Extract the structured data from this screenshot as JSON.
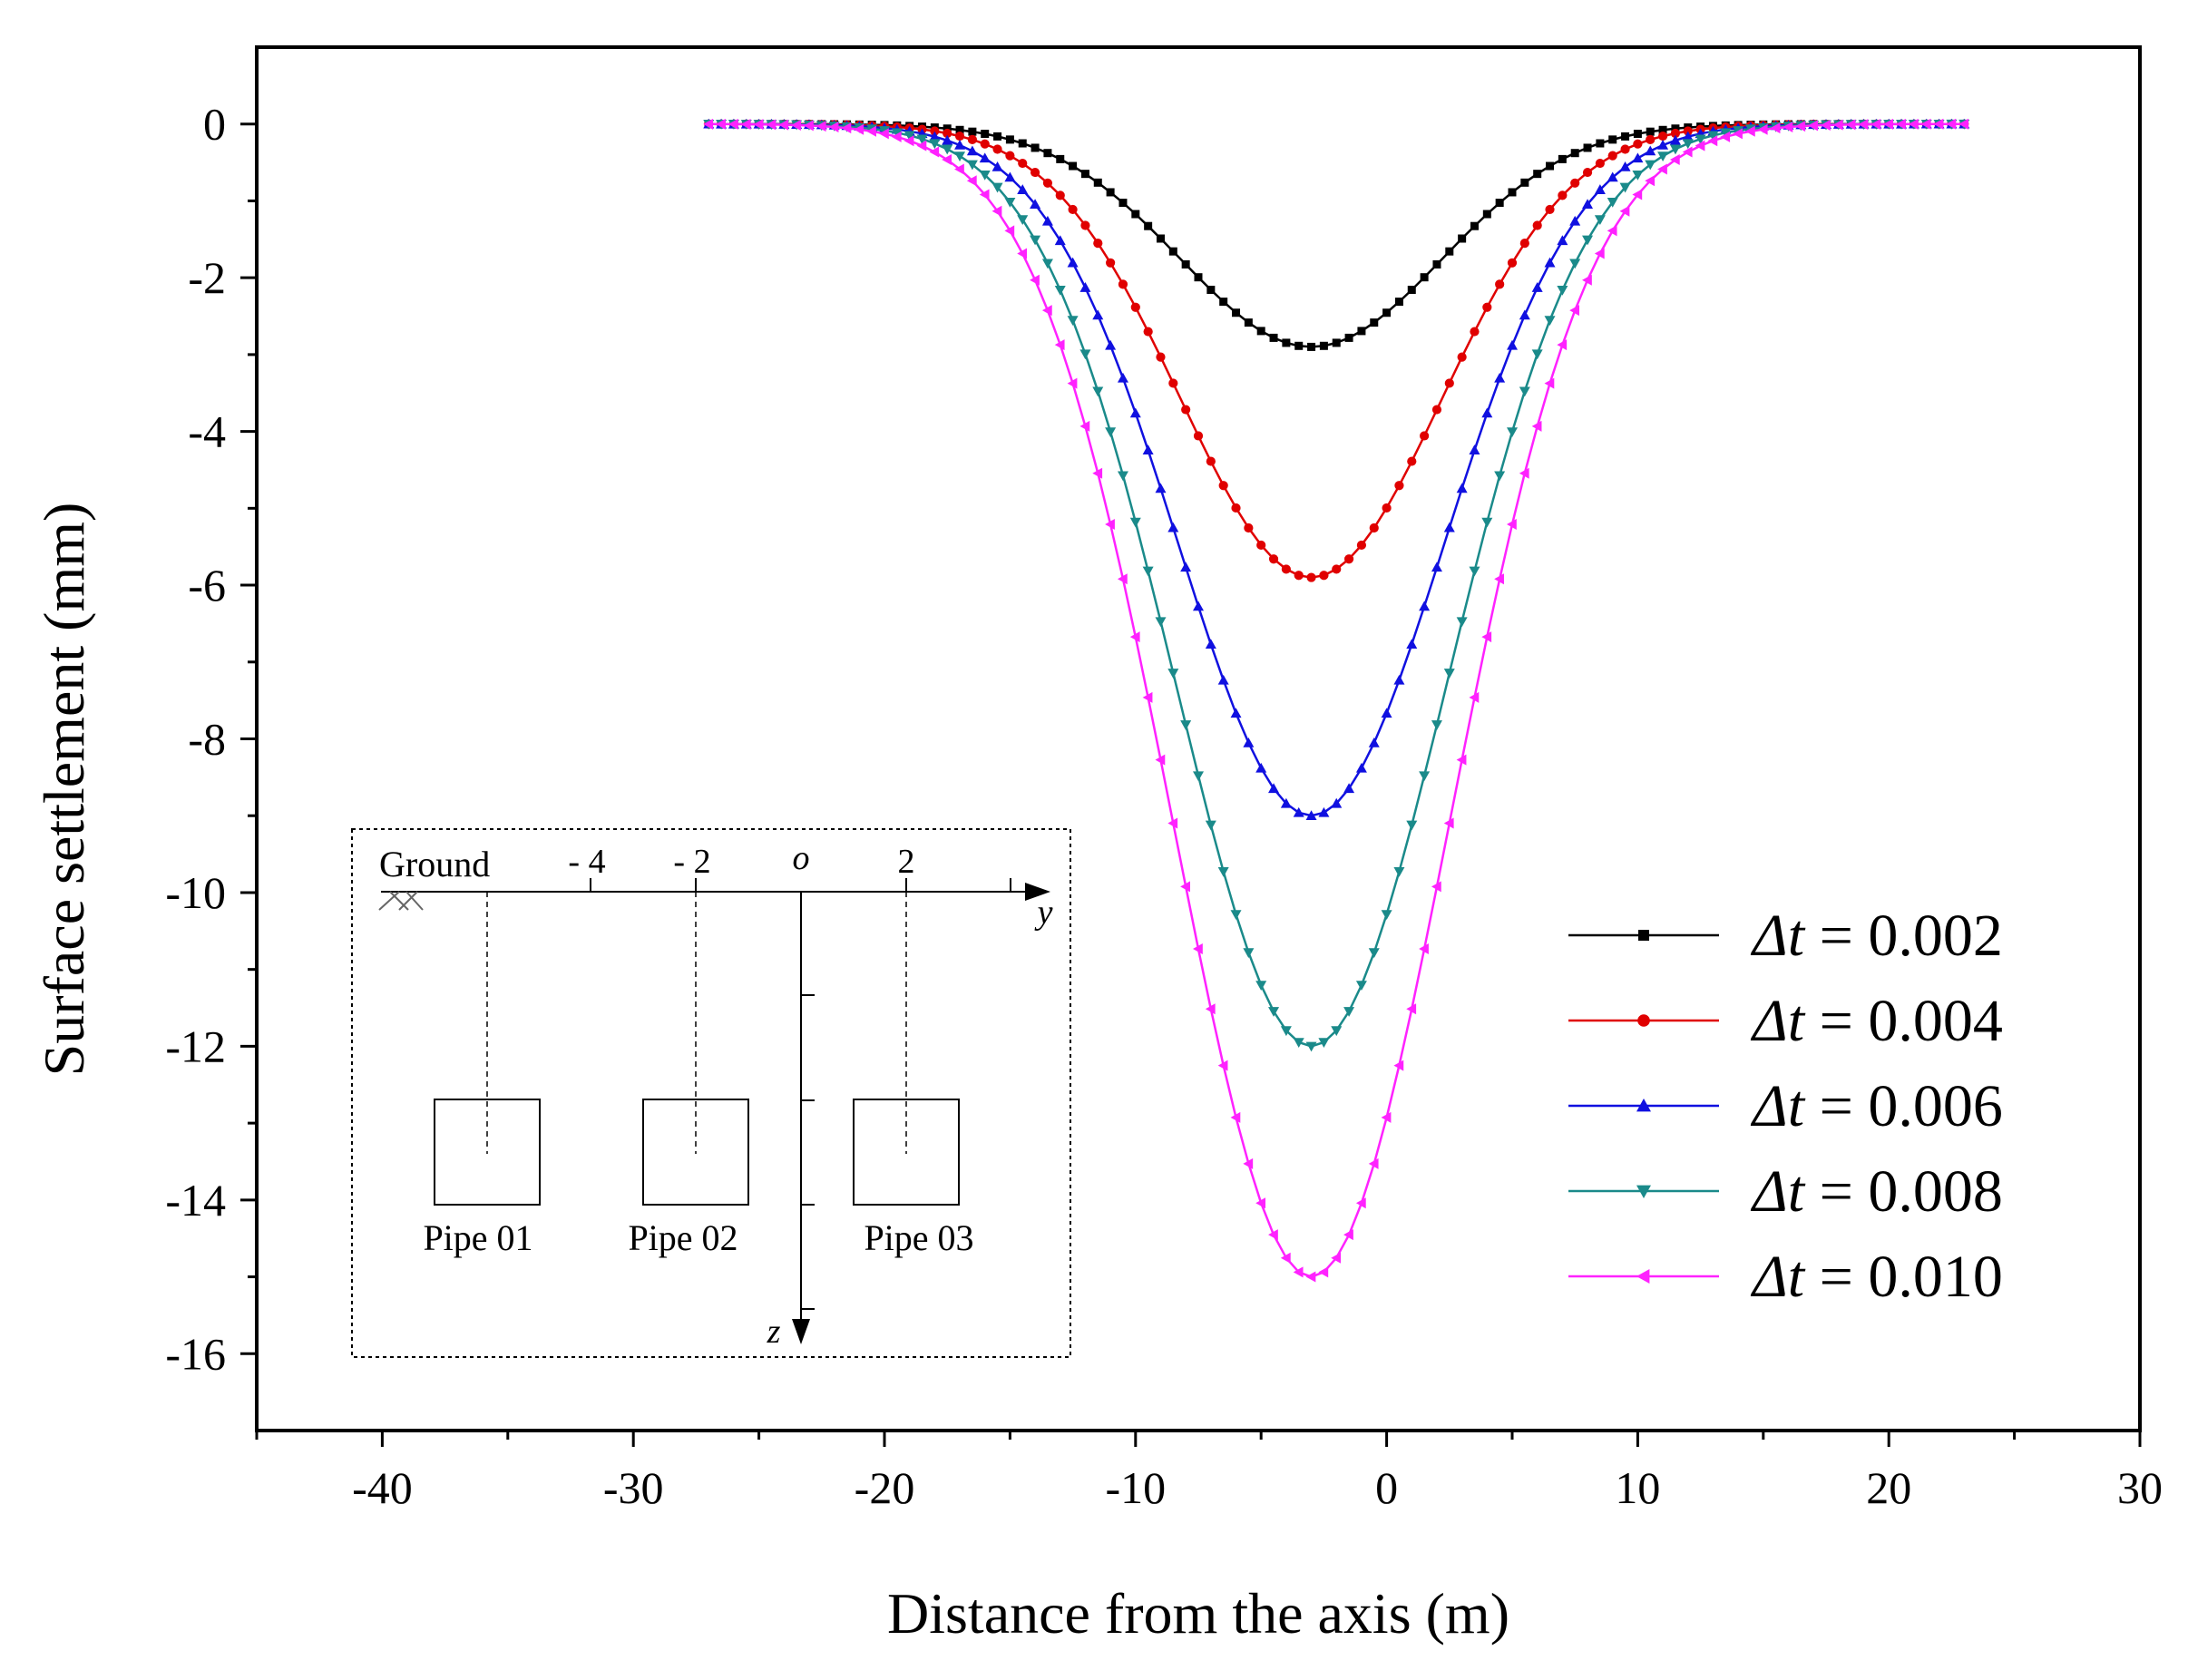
{
  "chart_data": {
    "type": "line",
    "title": "",
    "xlabel": "Distance from the axis (m)",
    "ylabel": "Surface settlement (mm)",
    "xlim": [
      -45,
      30
    ],
    "ylim": [
      -17,
      1
    ],
    "x_ticks": [
      -40,
      -30,
      -20,
      -10,
      0,
      10,
      20,
      30
    ],
    "y_ticks": [
      0,
      -2,
      -4,
      -6,
      -8,
      -10,
      -12,
      -14,
      -16
    ],
    "x_tick_labels": [
      "-40",
      "-30",
      "-20",
      "-10",
      "0",
      "10",
      "20",
      "30"
    ],
    "y_tick_labels": [
      "0",
      "-2",
      "-4",
      "-6",
      "-8",
      "-10",
      "-12",
      "-14",
      "-16"
    ],
    "legend_position": "lower-right",
    "x_start": -27,
    "x_end": 23,
    "x_step": 0.5,
    "trough_center_x": -3,
    "series": [
      {
        "name": "Δt = 0.002",
        "symbol": "Δt",
        "value_label": "0.002",
        "max_settlement": -2.9,
        "trough_width": 5.2,
        "marker": "square",
        "color": "#000000"
      },
      {
        "name": "Δt = 0.004",
        "symbol": "Δt",
        "value_label": "0.004",
        "max_settlement": -5.9,
        "trough_width": 5.2,
        "marker": "circle",
        "color": "#e00000"
      },
      {
        "name": "Δt = 0.006",
        "symbol": "Δt",
        "value_label": "0.006",
        "max_settlement": -9.0,
        "trough_width": 5.3,
        "marker": "triangle-up",
        "color": "#1010e0"
      },
      {
        "name": "Δt = 0.008",
        "symbol": "Δt",
        "value_label": "0.008",
        "max_settlement": -12.0,
        "trough_width": 5.4,
        "marker": "triangle-down",
        "color": "#1a8a8a"
      },
      {
        "name": "Δt = 0.010",
        "symbol": "Δt",
        "value_label": "0.010",
        "max_settlement": -15.0,
        "trough_width": 5.5,
        "marker": "triangle-left",
        "color": "#ff22ff"
      }
    ]
  },
  "inset": {
    "ground_label": "Ground",
    "y_axis_label": "y",
    "z_axis_label": "z",
    "origin_label": "o",
    "tick_labels": [
      "- 4",
      "- 2",
      "2"
    ],
    "pipes": [
      "Pipe 01",
      "Pipe 02",
      "Pipe 03"
    ]
  }
}
